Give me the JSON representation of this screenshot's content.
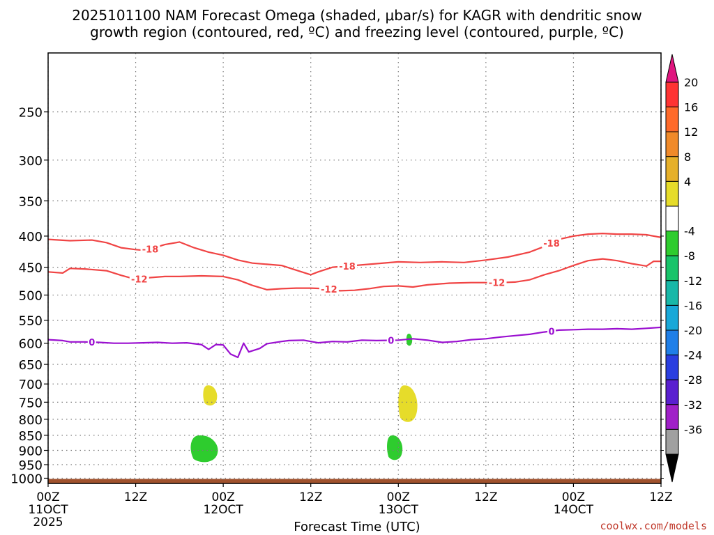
{
  "title_line1": "2025101100 NAM Forecast Omega (shaded, μbar/s) for KAGR with dendritic snow",
  "title_line2": "growth region (contoured, red, ºC) and freezing level (contoured, purple, ºC)",
  "credit": "coolwx.com/models",
  "chart_data": {
    "type": "time-height cross section",
    "xlabel": "Forecast Time (UTC)",
    "x_ticks": [
      {
        "hour": 0,
        "l1": "00Z",
        "l2": "11OCT",
        "l3": "2025"
      },
      {
        "hour": 12,
        "l1": "12Z",
        "l2": "",
        "l3": ""
      },
      {
        "hour": 24,
        "l1": "00Z",
        "l2": "12OCT",
        "l3": ""
      },
      {
        "hour": 36,
        "l1": "12Z",
        "l2": "",
        "l3": ""
      },
      {
        "hour": 48,
        "l1": "00Z",
        "l2": "13OCT",
        "l3": ""
      },
      {
        "hour": 60,
        "l1": "12Z",
        "l2": "",
        "l3": ""
      },
      {
        "hour": 72,
        "l1": "00Z",
        "l2": "14OCT",
        "l3": ""
      },
      {
        "hour": 84,
        "l1": "12Z",
        "l2": "",
        "l3": ""
      }
    ],
    "xlim": [
      0,
      84
    ],
    "y_ticks": [
      250,
      300,
      350,
      400,
      450,
      500,
      550,
      600,
      650,
      700,
      750,
      800,
      850,
      900,
      950,
      1000
    ],
    "ylim": [
      200,
      1020
    ],
    "colorbar": {
      "labels": [
        20,
        16,
        12,
        8,
        4,
        -4,
        -8,
        -12,
        -16,
        -20,
        -24,
        -28,
        -32,
        -36
      ],
      "top_triangle_color": "#e0157f",
      "bottom_triangle_color": "#000000",
      "colors": [
        "#ff3333",
        "#ff6a2a",
        "#f08a2a",
        "#e6b02a",
        "#e6dc2a",
        "#ffffff",
        "#2ecc2e",
        "#19c46a",
        "#18b8a8",
        "#18a8d8",
        "#1f7fe8",
        "#2a3ee0",
        "#5a1fd0",
        "#a020c8",
        "#a0a0a0"
      ]
    },
    "series": [
      {
        "name": "-18",
        "color": "#f04444",
        "label": "-18",
        "points": [
          [
            0,
            405
          ],
          [
            3,
            407
          ],
          [
            6,
            406
          ],
          [
            8,
            410
          ],
          [
            10,
            418
          ],
          [
            12,
            421
          ],
          [
            13,
            422
          ],
          [
            14,
            420
          ],
          [
            16,
            413
          ],
          [
            18,
            409
          ],
          [
            20,
            418
          ],
          [
            22,
            425
          ],
          [
            24,
            430
          ],
          [
            26,
            438
          ],
          [
            28,
            443
          ],
          [
            30,
            445
          ],
          [
            32,
            447
          ],
          [
            34,
            455
          ],
          [
            36,
            463
          ],
          [
            37,
            458
          ],
          [
            39,
            450
          ],
          [
            42,
            447
          ],
          [
            45,
            444
          ],
          [
            48,
            441
          ],
          [
            51,
            442
          ],
          [
            54,
            441
          ],
          [
            57,
            442
          ],
          [
            60,
            438
          ],
          [
            63,
            433
          ],
          [
            66,
            425
          ],
          [
            68,
            416
          ],
          [
            70,
            405
          ],
          [
            72,
            400
          ],
          [
            74,
            397
          ],
          [
            76,
            396
          ],
          [
            78,
            397
          ],
          [
            80,
            397
          ],
          [
            82,
            398
          ],
          [
            84,
            402
          ]
        ],
        "label_hours": [
          14,
          41,
          69
        ]
      },
      {
        "name": "-12",
        "color": "#f04444",
        "label": "-12",
        "points": [
          [
            0,
            458
          ],
          [
            2,
            460
          ],
          [
            3,
            452
          ],
          [
            5,
            453
          ],
          [
            8,
            456
          ],
          [
            10,
            464
          ],
          [
            12,
            471
          ],
          [
            14,
            468
          ],
          [
            16,
            466
          ],
          [
            18,
            466
          ],
          [
            21,
            465
          ],
          [
            24,
            466
          ],
          [
            26,
            472
          ],
          [
            28,
            482
          ],
          [
            30,
            490
          ],
          [
            32,
            488
          ],
          [
            34,
            487
          ],
          [
            36,
            487
          ],
          [
            38,
            488
          ],
          [
            40,
            492
          ],
          [
            42,
            491
          ],
          [
            44,
            488
          ],
          [
            46,
            484
          ],
          [
            48,
            483
          ],
          [
            50,
            485
          ],
          [
            52,
            481
          ],
          [
            55,
            478
          ],
          [
            58,
            477
          ],
          [
            62,
            477
          ],
          [
            64,
            476
          ],
          [
            66,
            472
          ],
          [
            68,
            463
          ],
          [
            70,
            456
          ],
          [
            72,
            447
          ],
          [
            74,
            439
          ],
          [
            76,
            436
          ],
          [
            78,
            439
          ],
          [
            80,
            444
          ],
          [
            82,
            448
          ],
          [
            83,
            440
          ],
          [
            84,
            440
          ]
        ],
        "label_hours": [
          12.5,
          38.5,
          61.5
        ]
      },
      {
        "name": "0",
        "color": "#9a0fd0",
        "label": "0",
        "points": [
          [
            0,
            592
          ],
          [
            2,
            594
          ],
          [
            3,
            597
          ],
          [
            5,
            597
          ],
          [
            7,
            598
          ],
          [
            9,
            600
          ],
          [
            11,
            600
          ],
          [
            13,
            599
          ],
          [
            15,
            598
          ],
          [
            17,
            600
          ],
          [
            19,
            599
          ],
          [
            21,
            603
          ],
          [
            22,
            614
          ],
          [
            23,
            603
          ],
          [
            24,
            604
          ],
          [
            25,
            625
          ],
          [
            26,
            633
          ],
          [
            26.8,
            600
          ],
          [
            27.5,
            620
          ],
          [
            29,
            612
          ],
          [
            30,
            601
          ],
          [
            32,
            596
          ],
          [
            33,
            594
          ],
          [
            35,
            593
          ],
          [
            37,
            599
          ],
          [
            39,
            596
          ],
          [
            41,
            597
          ],
          [
            43,
            593
          ],
          [
            45,
            594
          ],
          [
            48,
            593
          ],
          [
            50,
            590
          ],
          [
            52,
            593
          ],
          [
            54,
            598
          ],
          [
            56,
            596
          ],
          [
            58,
            592
          ],
          [
            60,
            590
          ],
          [
            62,
            586
          ],
          [
            64,
            583
          ],
          [
            66,
            580
          ],
          [
            68,
            575
          ],
          [
            70,
            571
          ],
          [
            72,
            570
          ],
          [
            74,
            569
          ],
          [
            76,
            569
          ],
          [
            78,
            568
          ],
          [
            80,
            569
          ],
          [
            82,
            567
          ],
          [
            84,
            565
          ]
        ],
        "label_hours": [
          6,
          47,
          69
        ]
      }
    ],
    "shaded_regions": [
      {
        "omega": 8,
        "color": "#e6dc2a",
        "center_hour": 22.2,
        "p_top": 705,
        "p_bottom": 760,
        "width_hours": 1.8
      },
      {
        "omega": 8,
        "color": "#e6dc2a",
        "center_hour": 49.3,
        "p_top": 705,
        "p_bottom": 812,
        "width_hours": 2.5
      },
      {
        "omega": -8,
        "color": "#2ecc2e",
        "center_hour": 21.4,
        "p_top": 852,
        "p_bottom": 943,
        "width_hours": 3.6
      },
      {
        "omega": -8,
        "color": "#2ecc2e",
        "center_hour": 47.5,
        "p_top": 852,
        "p_bottom": 935,
        "width_hours": 2.0
      },
      {
        "omega": -8,
        "color": "#2ecc2e",
        "center_hour": 49.5,
        "p_top": 580,
        "p_bottom": 605,
        "width_hours": 0.7
      }
    ],
    "surface_fill": {
      "color": "#a0522d",
      "p_top": 1000
    }
  }
}
